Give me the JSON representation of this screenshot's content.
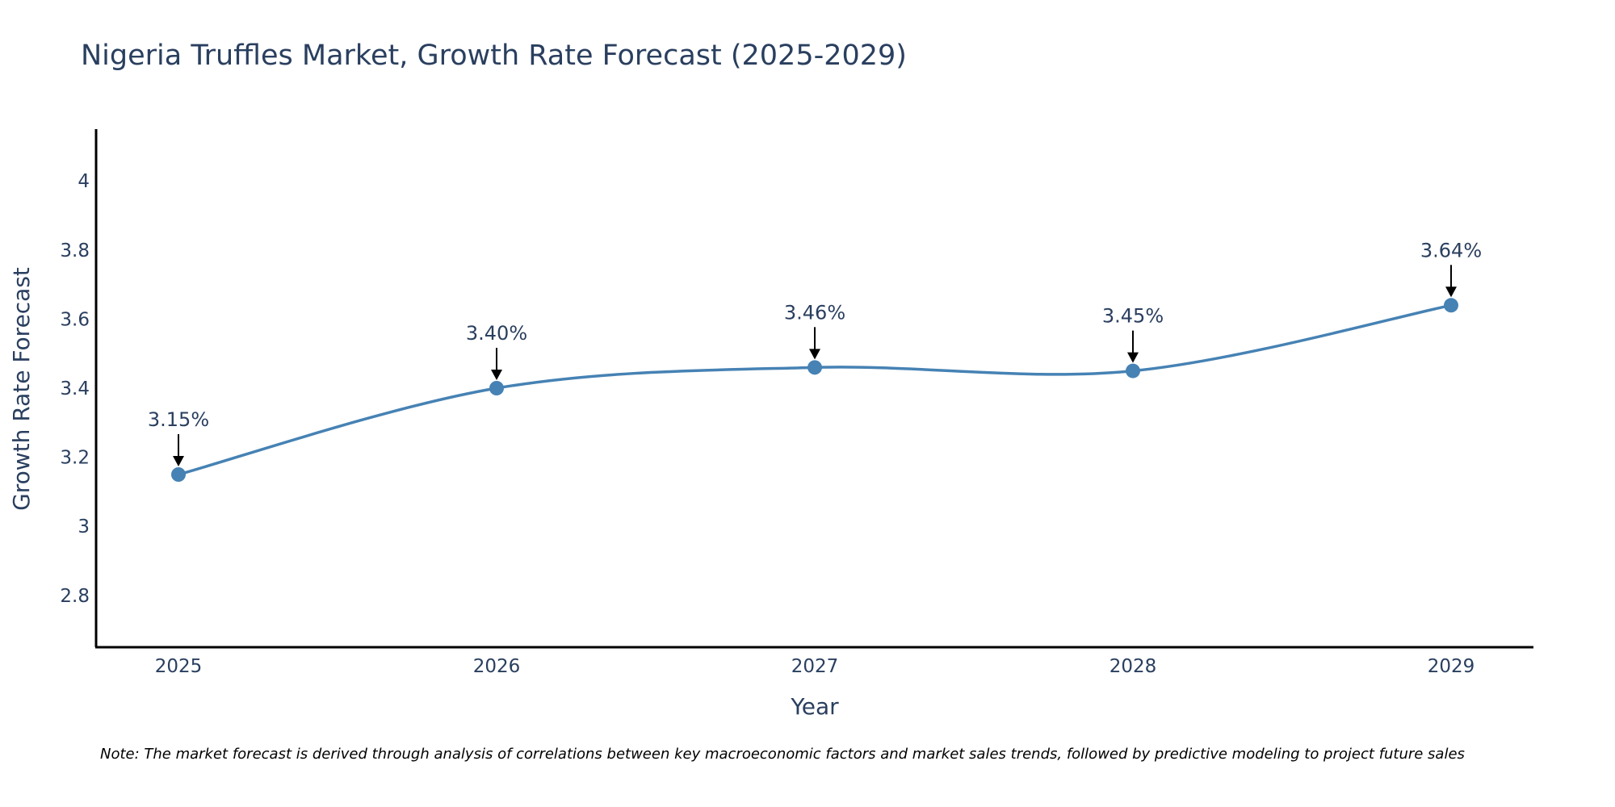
{
  "chart_data": {
    "type": "line",
    "title": "Nigeria Truffles Market, Growth Rate Forecast (2025-2029)",
    "xlabel": "Year",
    "ylabel": "Growth Rate Forecast",
    "categories": [
      "2025",
      "2026",
      "2027",
      "2028",
      "2029"
    ],
    "series": [
      {
        "name": "Growth Rate Forecast",
        "values": [
          3.15,
          3.4,
          3.46,
          3.45,
          3.64
        ],
        "labels": [
          "3.15%",
          "3.40%",
          "3.46%",
          "3.45%",
          "3.64%"
        ]
      }
    ],
    "ylim": [
      2.65,
      4.15
    ],
    "yticks": [
      2.8,
      3,
      3.2,
      3.4,
      3.6,
      3.8,
      4
    ],
    "ytick_labels": [
      "2.8",
      "3",
      "3.2",
      "3.4",
      "3.6",
      "3.8",
      "4"
    ],
    "grid": false,
    "line_color": "#4682b4",
    "marker_color": "#4682b4",
    "arrow_color": "#000000",
    "axis_color": "#000000",
    "text_color": "#2a3f5f"
  },
  "note": "Note: The market forecast is derived through analysis of correlations between key macroeconomic factors and market sales trends, followed by predictive modeling to project future sales"
}
